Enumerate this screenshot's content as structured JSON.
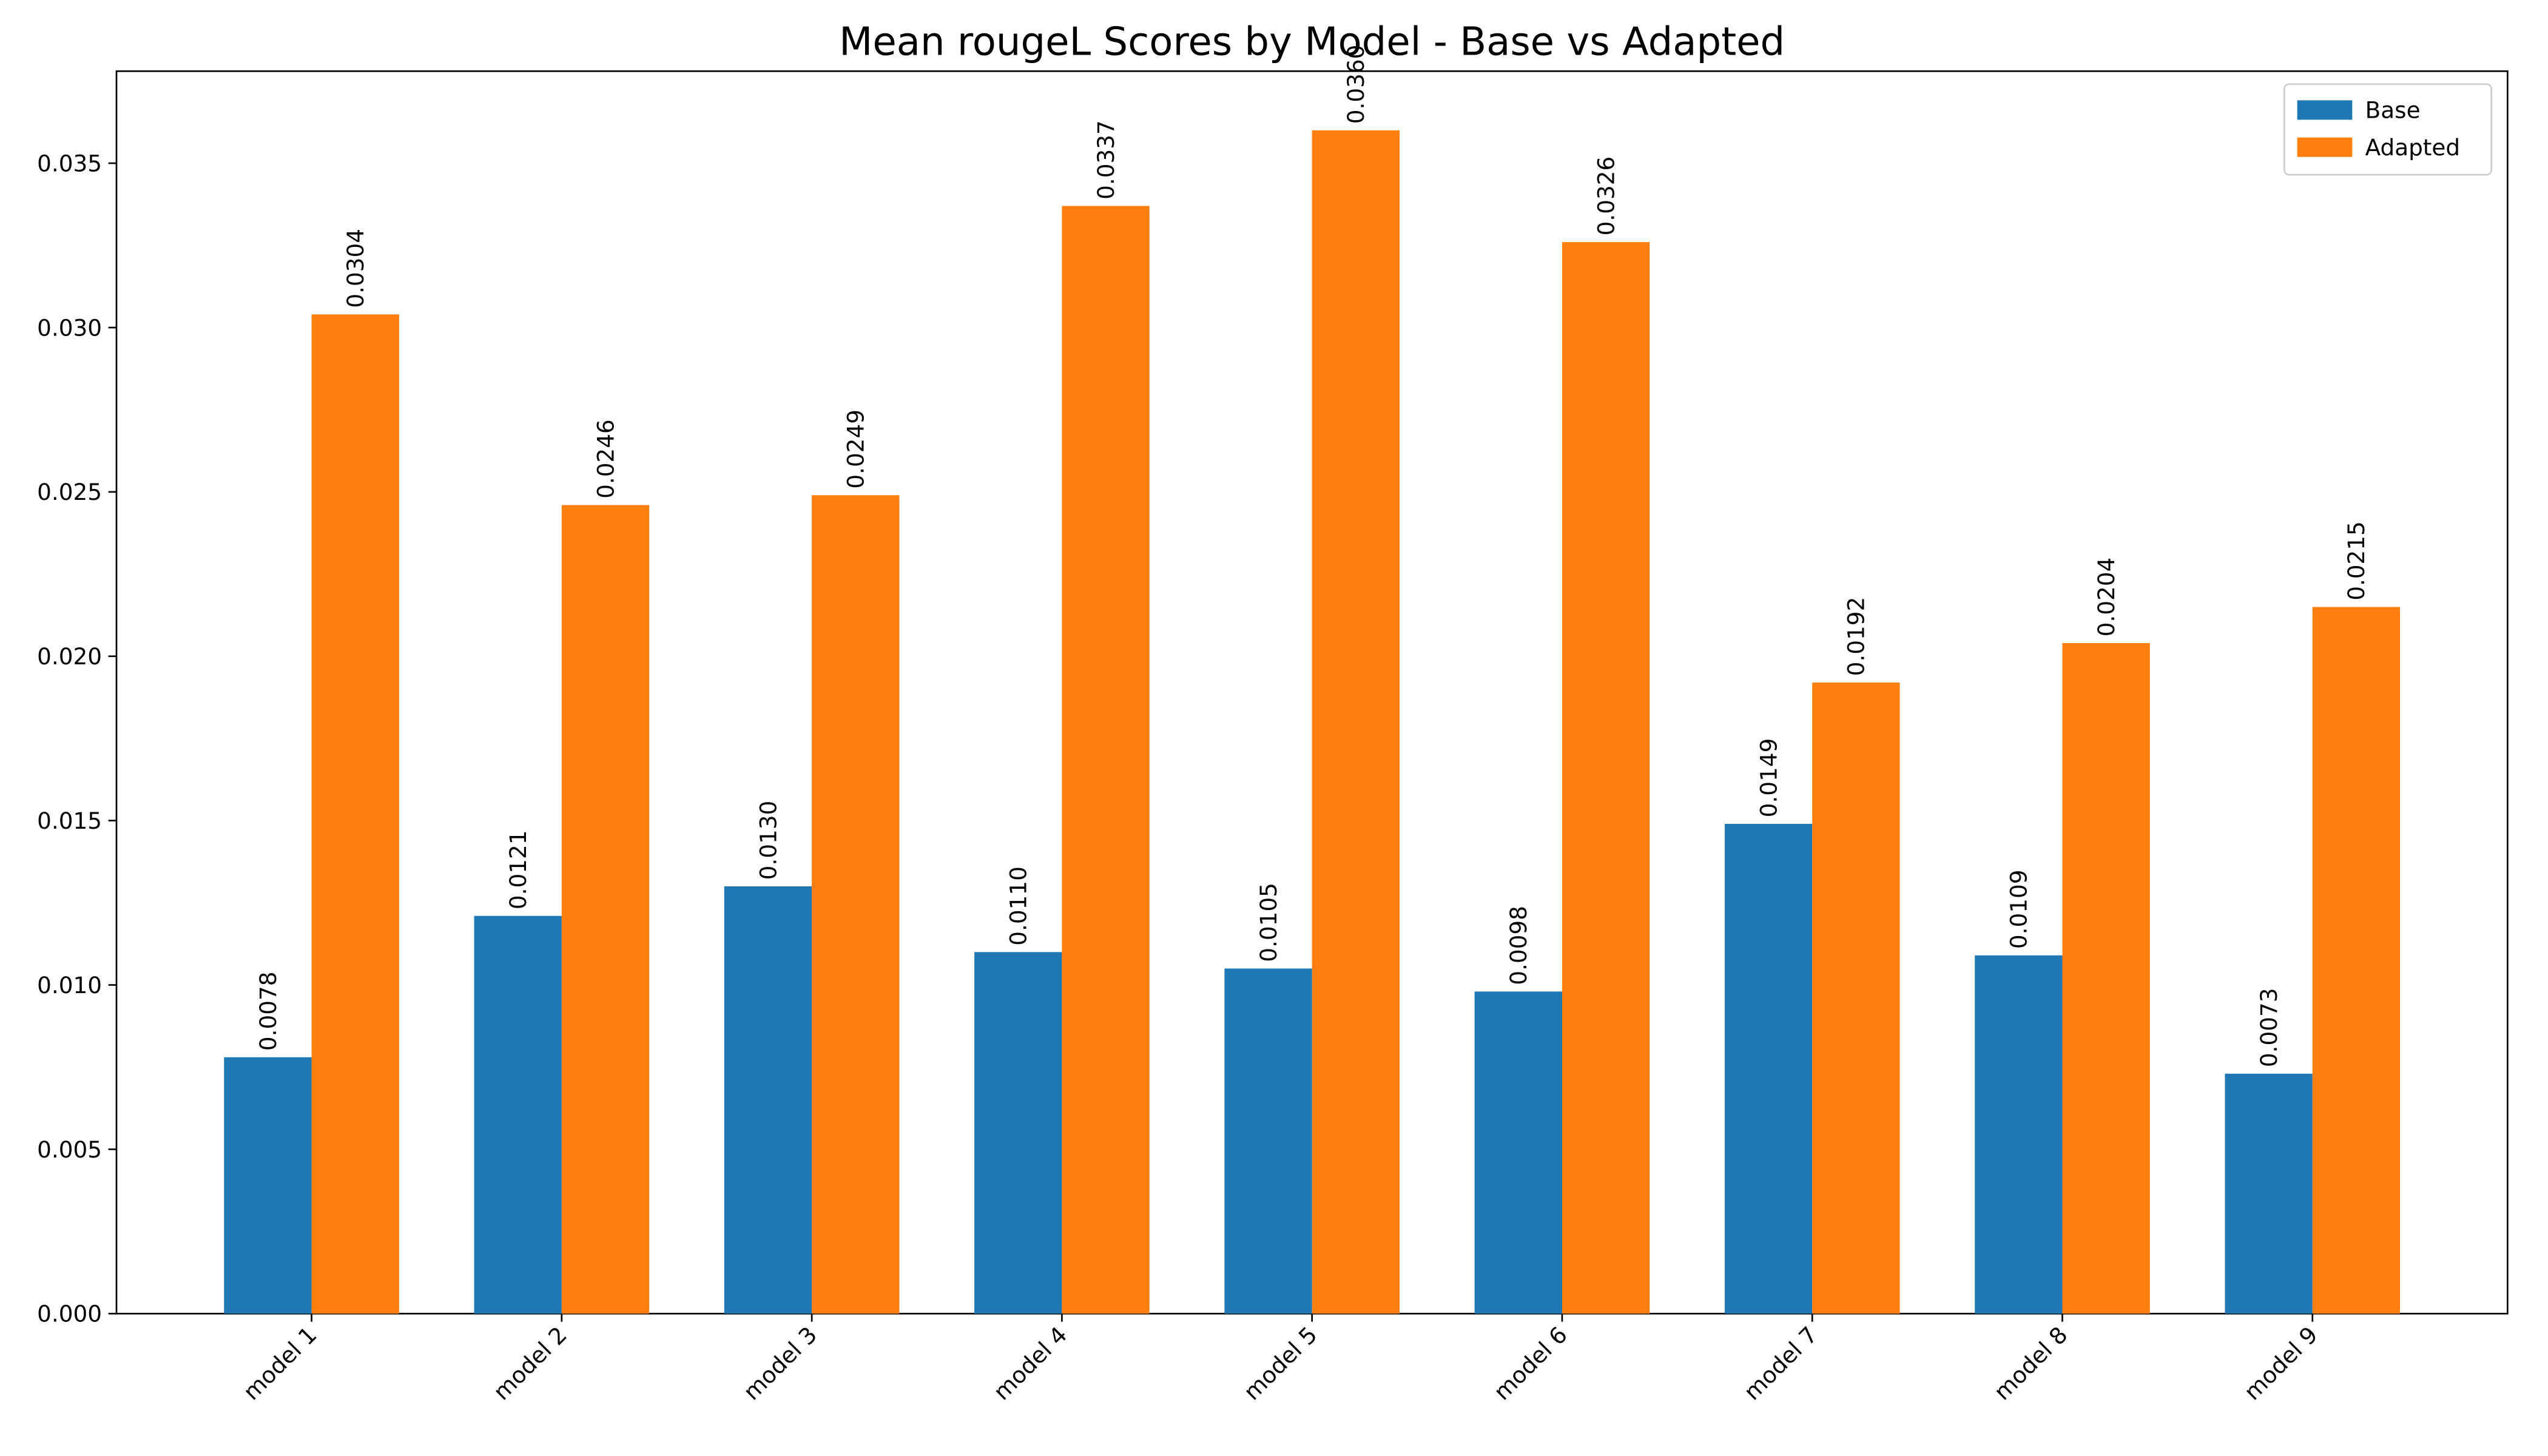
{
  "chart_data": {
    "type": "bar",
    "title": "Mean rougeL Scores by Model - Base vs Adapted",
    "categories": [
      "model 1",
      "model 2",
      "model 3",
      "model 4",
      "model 5",
      "model 6",
      "model 7",
      "model 8",
      "model 9"
    ],
    "series": [
      {
        "name": "Base",
        "color": "#1f77b4",
        "values": [
          0.0078,
          0.0121,
          0.013,
          0.011,
          0.0105,
          0.0098,
          0.0149,
          0.0109,
          0.0073
        ],
        "value_labels": [
          "0.0078",
          "0.0121",
          "0.0130",
          "0.0110",
          "0.0105",
          "0.0098",
          "0.0149",
          "0.0109",
          "0.0073"
        ]
      },
      {
        "name": "Adapted",
        "color": "#ff7f0e",
        "values": [
          0.0304,
          0.0246,
          0.0249,
          0.0337,
          0.036,
          0.0326,
          0.0192,
          0.0204,
          0.0215
        ],
        "value_labels": [
          "0.0304",
          "0.0246",
          "0.0249",
          "0.0337",
          "0.0360",
          "0.0326",
          "0.0192",
          "0.0204",
          "0.0215"
        ]
      }
    ],
    "ylim": [
      0,
      0.0378
    ],
    "yticks": [
      {
        "value": 0,
        "label": "0.000"
      },
      {
        "value": 0.005,
        "label": "0.005"
      },
      {
        "value": 0.01,
        "label": "0.010"
      },
      {
        "value": 0.015,
        "label": "0.015"
      },
      {
        "value": 0.02,
        "label": "0.020"
      },
      {
        "value": 0.025,
        "label": "0.025"
      },
      {
        "value": 0.03,
        "label": "0.030"
      },
      {
        "value": 0.035,
        "label": "0.035"
      }
    ],
    "grid": false,
    "legend": "upper right"
  }
}
